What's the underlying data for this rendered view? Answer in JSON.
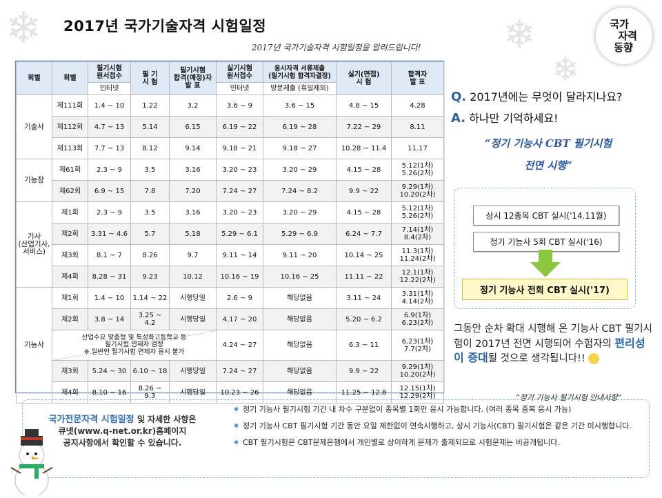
{
  "header": {
    "title": "2017년 국가기술자격 시험일정",
    "subtitle": "2017년 국가기술자격 시험일정을 알려드립니다!",
    "badge": [
      "국가",
      "자격",
      "동향"
    ]
  },
  "table": {
    "h1": [
      "회별",
      "회별",
      "필기시험\n원서접수",
      "필 기\n시 험",
      "필기시험\n합격(예정)자\n발 표",
      "실기시험\n원서접수",
      "응시자격 서류제출\n(필기시험 합격자결정)",
      "실기(면접)\n시 험",
      "합격자\n발 표"
    ],
    "h2": [
      "인터넷",
      "인터넷",
      "방문제출 (휴일제외)"
    ],
    "groups": {
      "a": "기술사",
      "b": "기능장",
      "c": "기사\n(산업기사,\n서비스)",
      "d": "기능사"
    },
    "rows": {
      "a1": [
        "제111회",
        "1.4 ~ 10",
        "1.22",
        "3.2",
        "3.6 ~ 9",
        "3.6 ~ 15",
        "4.8 ~ 15",
        "4.28"
      ],
      "a2": [
        "제112회",
        "4.7 ~ 13",
        "5.14",
        "6.15",
        "6.19 ~ 22",
        "6.19 ~ 28",
        "7.22 ~ 29",
        "8.11"
      ],
      "a3": [
        "제113회",
        "7.7 ~ 13",
        "8.12",
        "9.14",
        "9.18 ~ 21",
        "9.18 ~ 27",
        "10.28 ~ 11.4",
        "11.17"
      ],
      "b1": [
        "제61회",
        "2.3 ~ 9",
        "3.5",
        "3.16",
        "3.20 ~ 23",
        "3.20 ~ 29",
        "4.15 ~ 28",
        "5.12(1차)\n5.26(2차)"
      ],
      "b2": [
        "제62회",
        "6.9 ~ 15",
        "7.8",
        "7.20",
        "7.24 ~ 27",
        "7.24 ~ 8.2",
        "9.9 ~ 22",
        "9.29(1차)\n10.20(2차)"
      ],
      "c1": [
        "제1회",
        "2.3 ~ 9",
        "3.5",
        "3.16",
        "3.20 ~ 23",
        "3.20 ~ 29",
        "4.15 ~ 28",
        "5.12(1차)\n5.26(2차)"
      ],
      "c2": [
        "제2회",
        "3.31 ~ 4.6",
        "5.7",
        "5.18",
        "5.29 ~ 6.1",
        "5.29 ~ 6.9",
        "6.24 ~ 7.7",
        "7.14(1차)\n8.4(2차)"
      ],
      "c3": [
        "제3회",
        "8.1 ~ 7",
        "8.26",
        "9.7",
        "9.11 ~ 14",
        "9.11 ~ 20",
        "10.14 ~ 25",
        "11.3(1차)\n11.24(2차)"
      ],
      "c4": [
        "제4회",
        "8.28 ~ 31",
        "9.23",
        "10.12",
        "10.16 ~ 19",
        "10.16 ~ 25",
        "11.11 ~ 22",
        "12.1(1차)\n12.22(2차)"
      ],
      "d1": [
        "제1회",
        "1.4 ~ 10",
        "1.14 ~ 22",
        "시행당일",
        "2.6 ~ 9",
        "해당없음",
        "3.11 ~ 24",
        "3.31(1차)\n4.14(2차)"
      ],
      "d2": [
        "제2회",
        "3.8 ~ 14",
        "3.25 ~ 4.2",
        "시행당일",
        "4.17 ~ 20",
        "해당없음",
        "5.20 ~ 6.2",
        "6.9(1차)\n6.23(2차)"
      ],
      "d3": [
        "산업수요 맞춤형 및 특성화고등학교 등\n필기시험 면제자 검정\n※ 일반인 필기시험 면제자 응시 불가",
        "4.24 ~ 27",
        "해당없음",
        "6.3 ~ 11",
        "6.23(1차)\n7.7(2차)"
      ],
      "d4": [
        "제3회",
        "5.24 ~ 30",
        "6.10 ~ 18",
        "시행당일",
        "7.24 ~ 27",
        "해당없음",
        "9.9 ~ 22",
        "9.29(1차)\n10.20(2차)"
      ],
      "d5": [
        "제4회",
        "8.10 ~ 16",
        "8.26 ~ 9.3",
        "시행당일",
        "10.23 ~ 26",
        "해당없음",
        "11.25 ~ 12.8",
        "12.15(1차)\n12.29(2차)"
      ]
    }
  },
  "right": {
    "q": "Q.",
    "q_text": "2017년에는 무엇이 달라지나요?",
    "a": "A.",
    "a_text": "하나만 기억하세요!",
    "quote1": "“정기 기능사 CBT 필기시험",
    "quote2": "전면 시행”",
    "flow1": "상시 12종목 CBT 실시('14.11월)",
    "flow2": "정기 기능사 5회 CBT 실시('16)",
    "flow3": "정기 기능사 전회 CBT 실시('17)",
    "body1": "그동안 순차 확대 시행해 온 기능사 CBT 필기시험이 2017년 전면 시행되어 수험자의 ",
    "body_em": "편리성이 증대",
    "body2": "될 것으로 생각됩니다!!"
  },
  "footer": {
    "caption": "“정기 기능사 필기시험 안내사항”",
    "left1": "국가전문자격 시험일정",
    "left2": " 및 자세한 사항은",
    "left3": "큐넷(www.q-net.or.kr)홈페이지",
    "left4": "공지사항에서 확인할 수 있습니다.",
    "b1": "정기 기능사 필기시험 기간 내 차수 구분없이 종목별 1회만 응시 가능합니다. (여러 종목 중복 응시 가능)",
    "b2": "정기 기능사 CBT 필기시험 기간 동안 요일 제한없이 연속시행하고, 상시 기능사(CBT) 필기시험은 같은 기간 미시행합니다.",
    "b3": "CBT 필기시험은 CBT문제은행에서 개인별로 상이하게 문제가 출제되므로 시험문제는 비공개됩니다."
  },
  "colors": {
    "accent": "#2f5f9e",
    "header_bg": "#dfe9f5",
    "row_alt": "#f2f2f2"
  },
  "icons": [
    "snowflake-icon",
    "snowman-icon",
    "arrow-down-icon",
    "star-bullet-icon"
  ]
}
